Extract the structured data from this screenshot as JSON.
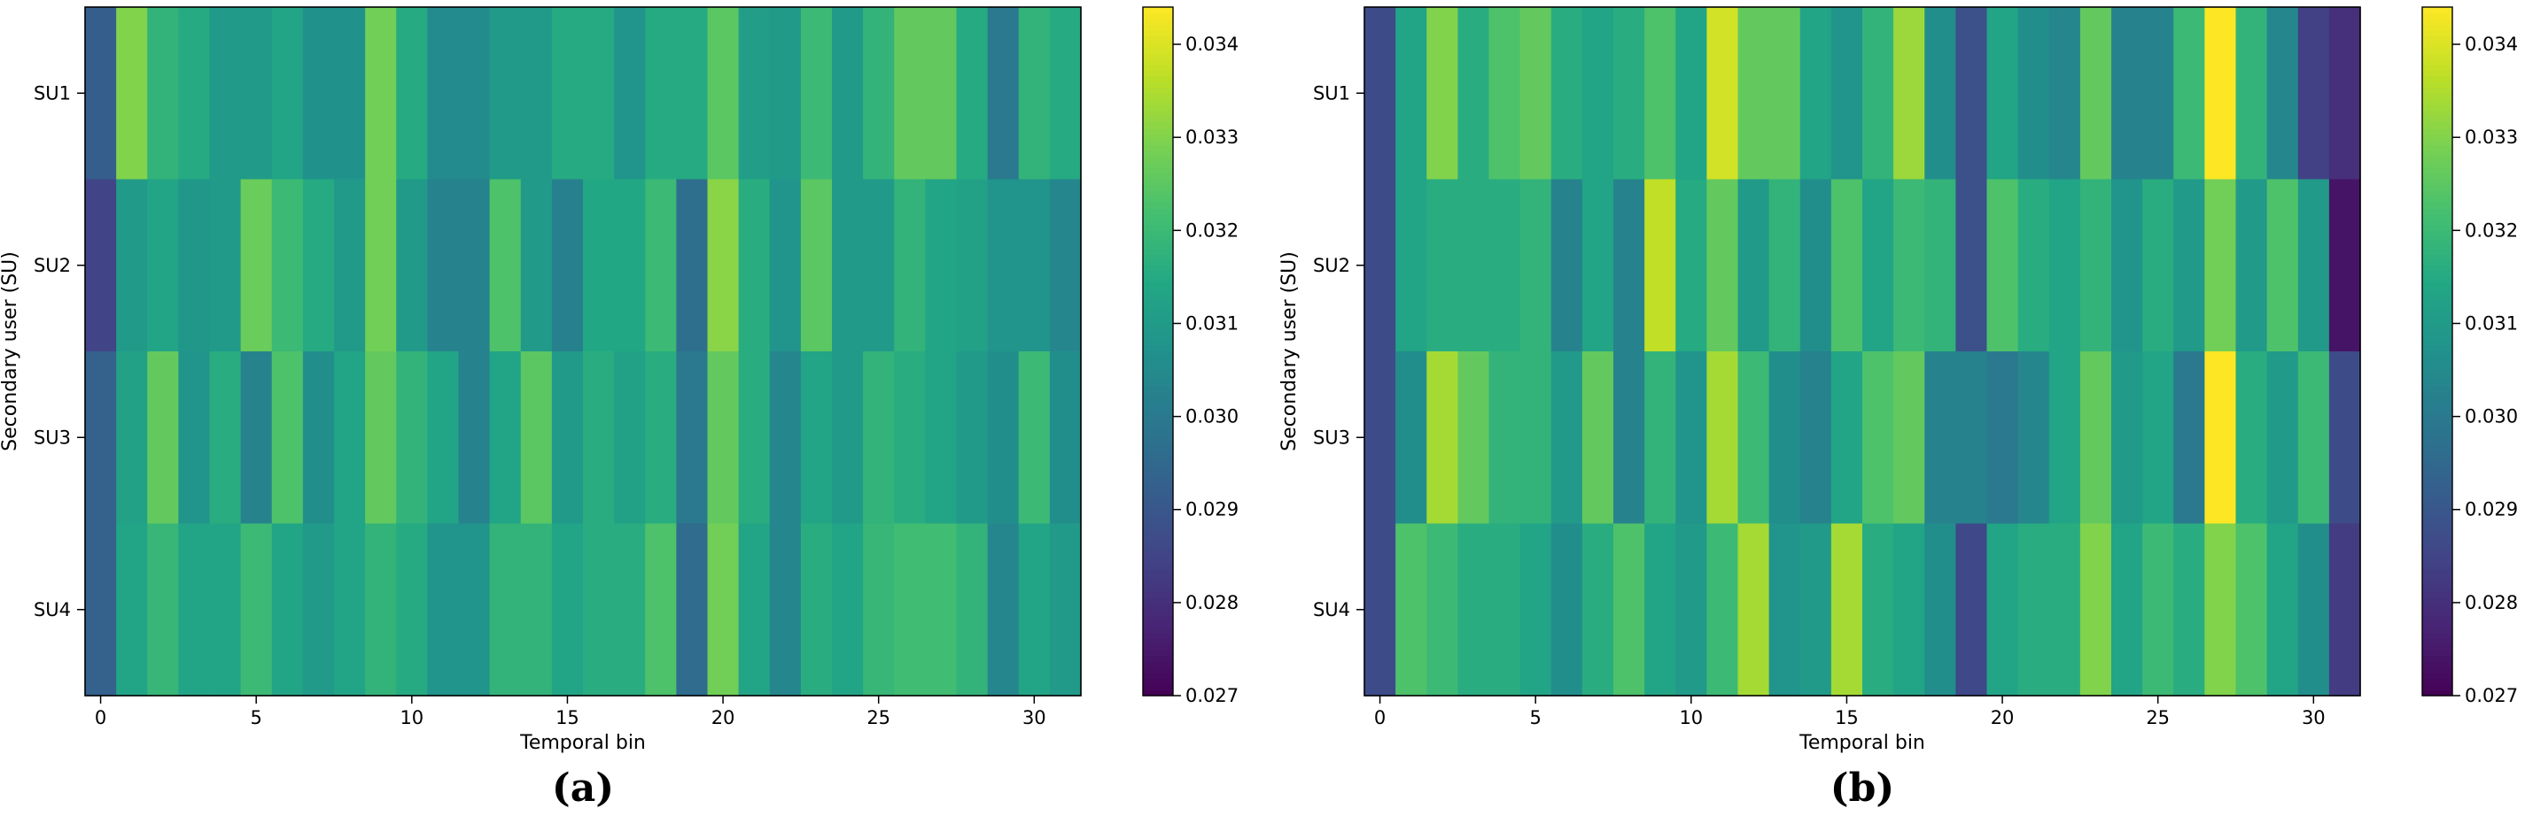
{
  "chart_data": [
    {
      "type": "heatmap",
      "panel_label": "(a)",
      "xlabel": "Temporal bin",
      "ylabel": "Secondary user (SU)",
      "row_labels": [
        "SU1",
        "SU2",
        "SU3",
        "SU4"
      ],
      "x_ticks": [
        0,
        5,
        10,
        15,
        20,
        25,
        30
      ],
      "xlim": [
        -0.5,
        31.5
      ],
      "colormap": "viridis",
      "vmin": 0.027,
      "vmax": 0.0344,
      "colorbar_ticks": [
        "0.027",
        "0.028",
        "0.029",
        "0.030",
        "0.031",
        "0.032",
        "0.033",
        "0.034"
      ],
      "values": [
        [
          0.0292,
          0.033,
          0.0318,
          0.0315,
          0.031,
          0.031,
          0.0313,
          0.0307,
          0.0307,
          0.0328,
          0.0315,
          0.0305,
          0.0305,
          0.031,
          0.031,
          0.0315,
          0.0315,
          0.0308,
          0.0315,
          0.0315,
          0.0325,
          0.0311,
          0.031,
          0.032,
          0.031,
          0.0318,
          0.0326,
          0.0326,
          0.0315,
          0.03,
          0.0318,
          0.0315
        ],
        [
          0.0285,
          0.031,
          0.0313,
          0.0309,
          0.031,
          0.0327,
          0.032,
          0.0315,
          0.031,
          0.0328,
          0.031,
          0.0303,
          0.0303,
          0.0323,
          0.031,
          0.0302,
          0.0314,
          0.0314,
          0.032,
          0.0297,
          0.0331,
          0.0316,
          0.0308,
          0.0325,
          0.031,
          0.031,
          0.0318,
          0.0313,
          0.0312,
          0.0308,
          0.0308,
          0.0304
        ],
        [
          0.0293,
          0.0312,
          0.0326,
          0.0308,
          0.0316,
          0.0303,
          0.0323,
          0.0306,
          0.0313,
          0.0326,
          0.0318,
          0.0313,
          0.0303,
          0.0313,
          0.0325,
          0.031,
          0.0316,
          0.0312,
          0.0316,
          0.03,
          0.0326,
          0.0316,
          0.0304,
          0.0313,
          0.031,
          0.0318,
          0.0316,
          0.0313,
          0.031,
          0.0306,
          0.032,
          0.0306
        ],
        [
          0.0293,
          0.0313,
          0.0319,
          0.0313,
          0.0313,
          0.032,
          0.0313,
          0.031,
          0.0313,
          0.0318,
          0.0315,
          0.0308,
          0.0308,
          0.0318,
          0.0318,
          0.0313,
          0.0316,
          0.0316,
          0.0323,
          0.0296,
          0.0328,
          0.0313,
          0.0304,
          0.0316,
          0.0313,
          0.0319,
          0.0321,
          0.0321,
          0.0318,
          0.0304,
          0.0313,
          0.031
        ]
      ]
    },
    {
      "type": "heatmap",
      "panel_label": "(b)",
      "xlabel": "Temporal bin",
      "ylabel": "Secondary user (SU)",
      "row_labels": [
        "SU1",
        "SU2",
        "SU3",
        "SU4"
      ],
      "x_ticks": [
        0,
        5,
        10,
        15,
        20,
        25,
        30
      ],
      "xlim": [
        -0.5,
        31.5
      ],
      "colormap": "viridis",
      "vmin": 0.027,
      "vmax": 0.0344,
      "colorbar_ticks": [
        "0.027",
        "0.028",
        "0.029",
        "0.030",
        "0.031",
        "0.032",
        "0.033",
        "0.034"
      ],
      "values": [
        [
          0.0287,
          0.0313,
          0.033,
          0.0316,
          0.0323,
          0.0326,
          0.0316,
          0.0313,
          0.0316,
          0.0323,
          0.0313,
          0.0339,
          0.0326,
          0.0326,
          0.0313,
          0.0308,
          0.0318,
          0.0333,
          0.0306,
          0.0288,
          0.0313,
          0.0306,
          0.0304,
          0.0326,
          0.0303,
          0.0303,
          0.032,
          0.0344,
          0.0318,
          0.0304,
          0.0284,
          0.028
        ],
        [
          0.0287,
          0.0313,
          0.0316,
          0.0316,
          0.0316,
          0.0318,
          0.0303,
          0.0313,
          0.0303,
          0.0337,
          0.0315,
          0.0326,
          0.031,
          0.0318,
          0.0306,
          0.0323,
          0.0313,
          0.032,
          0.0318,
          0.0288,
          0.0323,
          0.0316,
          0.0313,
          0.0318,
          0.0308,
          0.0316,
          0.031,
          0.0328,
          0.031,
          0.0323,
          0.031,
          0.0274
        ],
        [
          0.0287,
          0.0306,
          0.0334,
          0.0326,
          0.0318,
          0.0318,
          0.031,
          0.0326,
          0.0303,
          0.0318,
          0.0308,
          0.0334,
          0.032,
          0.0306,
          0.0303,
          0.0313,
          0.0323,
          0.0326,
          0.0303,
          0.0303,
          0.03,
          0.0304,
          0.0313,
          0.0326,
          0.031,
          0.0313,
          0.03,
          0.0344,
          0.0316,
          0.031,
          0.032,
          0.0287
        ],
        [
          0.0287,
          0.0323,
          0.032,
          0.0316,
          0.0316,
          0.0313,
          0.0306,
          0.0316,
          0.0323,
          0.0313,
          0.031,
          0.032,
          0.0334,
          0.0308,
          0.031,
          0.0334,
          0.0316,
          0.0313,
          0.0306,
          0.0286,
          0.0313,
          0.0316,
          0.0316,
          0.033,
          0.0313,
          0.032,
          0.0316,
          0.033,
          0.0323,
          0.0313,
          0.0306,
          0.0283
        ]
      ]
    }
  ]
}
